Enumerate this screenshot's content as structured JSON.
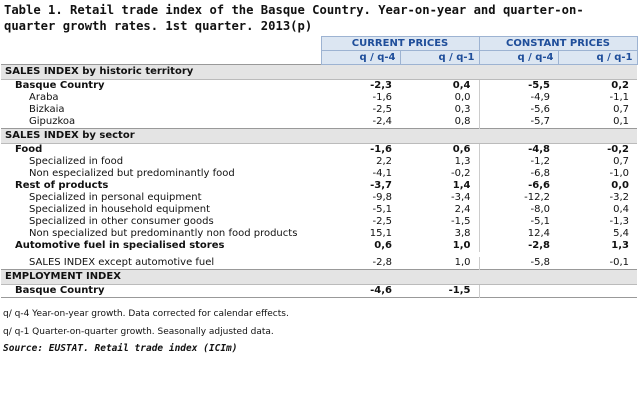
{
  "title": "Table 1. Retail trade index of the Basque Country. Year-on-year and quarter-on-quarter growth rates. 1st quarter. 2013(p)",
  "table": {
    "groups": [
      "CURRENT PRICES",
      "CONSTANT PRICES"
    ],
    "subheaders": [
      "q / q-4",
      "q / q-1",
      "q / q-4",
      "q / q-1"
    ],
    "sections": [
      {
        "title": "SALES INDEX by historic territory",
        "rows": [
          {
            "label": "Basque Country",
            "bold": true,
            "cells": [
              "-2,3",
              "0,4",
              "-5,5",
              "0,2"
            ]
          },
          {
            "label": "Araba",
            "bold": false,
            "cells": [
              "-1,6",
              "0,0",
              "-4,9",
              "-1,1"
            ]
          },
          {
            "label": "Bizkaia",
            "bold": false,
            "cells": [
              "-2,5",
              "0,3",
              "-5,6",
              "0,7"
            ]
          },
          {
            "label": "Gipuzkoa",
            "bold": false,
            "cells": [
              "-2,4",
              "0,8",
              "-5,7",
              "0,1"
            ]
          }
        ]
      },
      {
        "title": "SALES INDEX by sector",
        "rows": [
          {
            "label": "Food",
            "bold": true,
            "cells": [
              "-1,6",
              "0,6",
              "-4,8",
              "-0,2"
            ]
          },
          {
            "label": "Specialized in food",
            "bold": false,
            "cells": [
              "2,2",
              "1,3",
              "-1,2",
              "0,7"
            ]
          },
          {
            "label": "Non especialized but predominantly food",
            "bold": false,
            "cells": [
              "-4,1",
              "-0,2",
              "-6,8",
              "-1,0"
            ]
          },
          {
            "label": "Rest of products",
            "bold": true,
            "cells": [
              "-3,7",
              "1,4",
              "-6,6",
              "0,0"
            ]
          },
          {
            "label": "Specialized in personal equipment",
            "bold": false,
            "cells": [
              "-9,8",
              "-3,4",
              "-12,2",
              "-3,2"
            ]
          },
          {
            "label": "Specialized in household equipment",
            "bold": false,
            "cells": [
              "-5,1",
              "2,4",
              "-8,0",
              "0,4"
            ]
          },
          {
            "label": "Specialized in other consumer goods",
            "bold": false,
            "cells": [
              "-2,5",
              "-1,5",
              "-5,1",
              "-1,3"
            ]
          },
          {
            "label": "Non specialized but predominantly non food products",
            "bold": false,
            "cells": [
              "15,1",
              "3,8",
              "12,4",
              "5,4"
            ]
          },
          {
            "label": "Automotive fuel in specialised stores",
            "bold": true,
            "cells": [
              "0,6",
              "1,0",
              "-2,8",
              "1,3"
            ]
          },
          {
            "label": "SALES INDEX except automotive fuel",
            "bold": false,
            "cells": [
              "-2,8",
              "1,0",
              "-5,8",
              "-0,1"
            ]
          }
        ]
      },
      {
        "title": "EMPLOYMENT INDEX",
        "rows": [
          {
            "label": "Basque Country",
            "bold": true,
            "cells": [
              "-4,6",
              "-1,5"
            ]
          }
        ]
      }
    ]
  },
  "notes": [
    "q/ q-4 Year-on-year growth. Data corrected for calendar effects.",
    "q/ q-1 Quarter-on-quarter growth. Seasonally adjusted data."
  ],
  "source": "Source: EUSTAT. Retail trade index (ICIm)"
}
